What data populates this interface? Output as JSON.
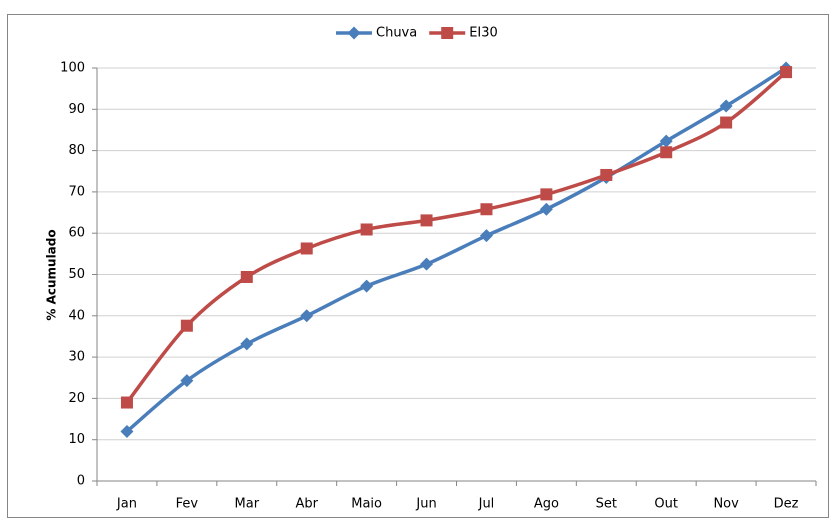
{
  "chart_data": {
    "type": "line",
    "y_label": "% Acumulado",
    "categories": [
      "Jan",
      "Fev",
      "Mar",
      "Abr",
      "Maio",
      "Jun",
      "Jul",
      "Ago",
      "Set",
      "Out",
      "Nov",
      "Dez"
    ],
    "series": [
      {
        "name": "Chuva",
        "color": "#4a7ebb",
        "marker": "diamond",
        "values": [
          12,
          24.3,
          33.2,
          40,
          47.2,
          52.5,
          59.4,
          65.8,
          73.5,
          82.3,
          90.8,
          100
        ]
      },
      {
        "name": "EI30",
        "color": "#be4b48",
        "marker": "square",
        "values": [
          19,
          37.6,
          49.4,
          56.3,
          60.9,
          63.1,
          65.8,
          69.4,
          74.1,
          79.6,
          86.8,
          99
        ]
      }
    ],
    "ylim": [
      0,
      100
    ],
    "yticks": [
      0,
      10,
      20,
      30,
      40,
      50,
      60,
      70,
      80,
      90,
      100
    ],
    "grid": true,
    "legend": "top"
  }
}
